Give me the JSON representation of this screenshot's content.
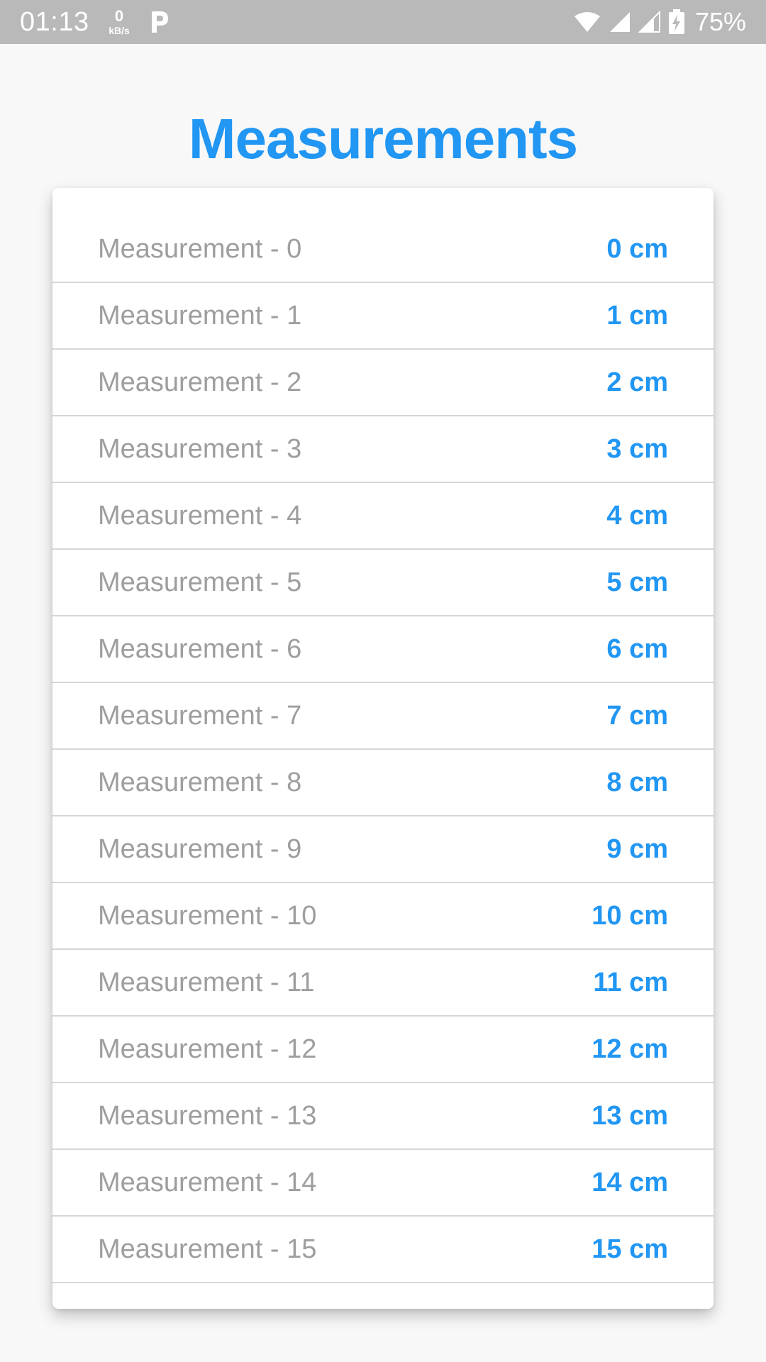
{
  "status_bar": {
    "time": "01:13",
    "net_speed_value": "0",
    "net_speed_unit": "kB/s",
    "battery_percent": "75%",
    "icons": [
      "parking-icon",
      "wifi-icon",
      "signal-icon",
      "signal-icon-2",
      "battery-charging-icon"
    ]
  },
  "header": {
    "title": "Measurements"
  },
  "colors": {
    "accent": "#2196f3",
    "label": "#9e9e9e",
    "status_bar": "#b9b9b9"
  },
  "measurements": [
    {
      "label": "Measurement - 0",
      "value": "0 cm"
    },
    {
      "label": "Measurement - 1",
      "value": "1 cm"
    },
    {
      "label": "Measurement - 2",
      "value": "2 cm"
    },
    {
      "label": "Measurement - 3",
      "value": "3 cm"
    },
    {
      "label": "Measurement - 4",
      "value": "4 cm"
    },
    {
      "label": "Measurement - 5",
      "value": "5 cm"
    },
    {
      "label": "Measurement - 6",
      "value": "6 cm"
    },
    {
      "label": "Measurement - 7",
      "value": "7 cm"
    },
    {
      "label": "Measurement - 8",
      "value": "8 cm"
    },
    {
      "label": "Measurement - 9",
      "value": "9 cm"
    },
    {
      "label": "Measurement - 10",
      "value": "10 cm"
    },
    {
      "label": "Measurement - 11",
      "value": "11 cm"
    },
    {
      "label": "Measurement - 12",
      "value": "12 cm"
    },
    {
      "label": "Measurement - 13",
      "value": "13 cm"
    },
    {
      "label": "Measurement - 14",
      "value": "14 cm"
    },
    {
      "label": "Measurement - 15",
      "value": "15 cm"
    }
  ]
}
